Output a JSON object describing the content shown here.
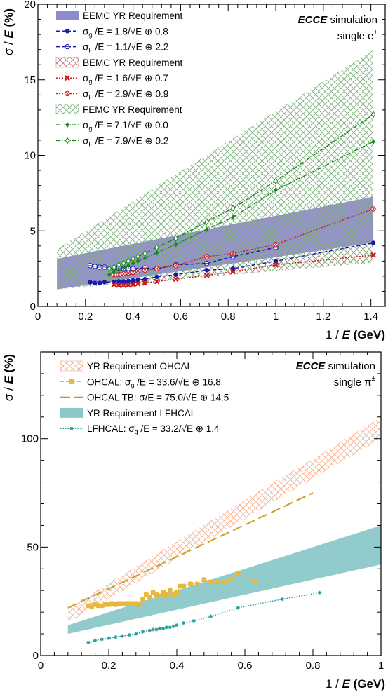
{
  "chart_data": [
    {
      "type": "line",
      "annotation": {
        "bold": "ECCE",
        "rest": " simulation",
        "line2": "single e",
        "line2_sup": "±"
      },
      "xlabel": {
        "prefix": "1 / ",
        "var": "E",
        "unit": " (GeV)"
      },
      "ylabel": {
        "prefix": "σ / ",
        "var": "E",
        "unit": " (%)"
      },
      "xlim": [
        0,
        1.46
      ],
      "ylim": [
        0,
        20
      ],
      "xticks": [
        0,
        0.2,
        0.4,
        0.6,
        0.8,
        1,
        1.2,
        1.4
      ],
      "xtick_labels": [
        "0",
        "0.2",
        "0.4",
        "0.6",
        "0.8",
        "1",
        "1.2",
        "1.4"
      ],
      "yticks": [
        0,
        5,
        10,
        15,
        20
      ],
      "ytick_labels": [
        "0",
        "5",
        "10",
        "15",
        "20"
      ],
      "legend_position": "top-left",
      "colors": {
        "eemc": "#1a1aa8",
        "eemc_band": "#8c8ccc",
        "bemc": "#cc1a1a",
        "bemc_band": "#c48080",
        "femc": "#1a8a1a",
        "femc_band": "#80b080"
      },
      "bands": [
        {
          "name": "EEMC YR Requirement",
          "color": "#8c8ccc",
          "style": "solid",
          "x": [
            0.08,
            1.41
          ],
          "lower": [
            1.13,
            4.22
          ],
          "upper": [
            3.15,
            7.26
          ]
        },
        {
          "name": "BEMC YR Requirement",
          "color": "#c48080",
          "style": "hatch",
          "x": [
            0.08,
            1.41
          ],
          "lower": [
            1.13,
            2.89
          ],
          "upper": [
            3.15,
            7.26
          ]
        },
        {
          "name": "FEMC YR Requirement",
          "color": "#80b080",
          "style": "hatch",
          "x": [
            0.08,
            1.41
          ],
          "lower": [
            1.13,
            2.89
          ],
          "upper": [
            3.78,
            16.98
          ]
        }
      ],
      "series": [
        {
          "name": "EEMC σg fit",
          "label_sym": "σ",
          "label_sub": "g",
          "label_eq": " /E = 1.8/√E ⊕ 0.8",
          "color": "#1a1aa8",
          "marker": "circle-filled",
          "dash": "5,3",
          "x": [
            0.22,
            0.24,
            0.26,
            0.28,
            0.32,
            0.34,
            0.36,
            0.38,
            0.4,
            0.42,
            0.45,
            0.5,
            0.58,
            0.71,
            0.82,
            1.0,
            1.41
          ],
          "y": [
            1.6,
            1.55,
            1.55,
            1.6,
            1.62,
            1.65,
            1.65,
            1.68,
            1.72,
            1.75,
            1.8,
            1.95,
            2.1,
            2.4,
            2.5,
            3.0,
            4.2
          ]
        },
        {
          "name": "EEMC σF fit",
          "label_sym": "σ",
          "label_sub": "F",
          "label_eq": " /E = 1.1/√E ⊕ 2.2",
          "color": "#1a1aa8",
          "marker": "circle-open",
          "dash": "5,3",
          "x": [
            0.22,
            0.24,
            0.26,
            0.28,
            0.32,
            0.34,
            0.36,
            0.38,
            0.4,
            0.45,
            0.5,
            0.58,
            0.71,
            0.82,
            1.0
          ],
          "y": [
            2.7,
            2.65,
            2.6,
            2.6,
            2.55,
            2.55,
            2.5,
            2.5,
            2.5,
            2.55,
            2.5,
            2.75,
            2.85,
            3.3,
            3.9
          ]
        },
        {
          "name": "BEMC σg fit",
          "label_sym": "σ",
          "label_sub": "g",
          "label_eq": " /E = 1.6/√E ⊕ 0.7",
          "color": "#cc1a1a",
          "marker": "x",
          "dash": "2,2",
          "x": [
            0.32,
            0.34,
            0.36,
            0.38,
            0.4,
            0.42,
            0.45,
            0.5,
            0.58,
            0.71,
            0.82,
            1.0,
            1.41
          ],
          "y": [
            1.45,
            1.4,
            1.4,
            1.42,
            1.45,
            1.5,
            1.55,
            1.65,
            1.8,
            2.05,
            2.3,
            2.75,
            3.4
          ]
        },
        {
          "name": "BEMC σF fit",
          "label_sym": "σ",
          "label_sub": "F",
          "label_eq": " /E = 2.9/√E ⊕ 0.9",
          "color": "#cc1a1a",
          "marker": "crossed-circle",
          "dash": "2,2",
          "x": [
            0.32,
            0.34,
            0.36,
            0.38,
            0.4,
            0.42,
            0.45,
            0.5,
            0.58,
            0.71,
            0.82,
            1.0,
            1.41
          ],
          "y": [
            2.1,
            2.1,
            2.15,
            2.2,
            2.25,
            2.35,
            2.4,
            2.5,
            2.7,
            3.3,
            3.5,
            4.1,
            6.45
          ]
        },
        {
          "name": "FEMC σg fit",
          "label_sym": "σ",
          "label_sub": "g",
          "label_eq": " /E = 7.1/√E ⊕ 0.0",
          "color": "#1a8a1a",
          "marker": "diamond-filled",
          "dash": "6,2,1.5,2",
          "x": [
            0.3,
            0.32,
            0.34,
            0.36,
            0.38,
            0.4,
            0.42,
            0.45,
            0.5,
            0.58,
            0.71,
            0.82,
            1.0,
            1.41
          ],
          "y": [
            2.1,
            2.3,
            2.4,
            2.55,
            2.7,
            2.85,
            3.0,
            3.2,
            3.55,
            4.1,
            5.1,
            5.9,
            7.7,
            10.9
          ]
        },
        {
          "name": "FEMC σF fit",
          "label_sym": "σ",
          "label_sub": "F",
          "label_eq": " /E = 7.9/√E ⊕ 0.2",
          "color": "#1a8a1a",
          "marker": "diamond-open",
          "dash": "6,2,1.5,2",
          "x": [
            0.3,
            0.32,
            0.34,
            0.36,
            0.38,
            0.4,
            0.42,
            0.45,
            0.5,
            0.58,
            0.71,
            0.82,
            1.0,
            1.41
          ],
          "y": [
            2.5,
            2.6,
            2.75,
            2.85,
            3.0,
            3.15,
            3.3,
            3.5,
            3.9,
            4.5,
            5.6,
            6.5,
            8.3,
            12.7
          ]
        }
      ],
      "legend": [
        {
          "kind": "band",
          "style": "solid",
          "color": "#8c8ccc",
          "text": "EEMC YR Requirement"
        },
        {
          "kind": "series",
          "ref": 0
        },
        {
          "kind": "series",
          "ref": 1
        },
        {
          "kind": "band",
          "style": "hatch",
          "color": "#c48080",
          "text": "BEMC YR Requirement"
        },
        {
          "kind": "series",
          "ref": 2
        },
        {
          "kind": "series",
          "ref": 3
        },
        {
          "kind": "band",
          "style": "hatch",
          "color": "#80b080",
          "text": "FEMC YR Requirement"
        },
        {
          "kind": "series",
          "ref": 4
        },
        {
          "kind": "series",
          "ref": 5
        }
      ]
    },
    {
      "type": "line",
      "annotation": {
        "bold": "ECCE",
        "rest": " simulation",
        "line2": "single π",
        "line2_sup": "±"
      },
      "xlabel": {
        "prefix": "1 / ",
        "var": "E",
        "unit": " (GeV)"
      },
      "ylabel": {
        "prefix": "σ / ",
        "var": "E",
        "unit": " (%)"
      },
      "xlim": [
        0,
        1
      ],
      "ylim": [
        0,
        140
      ],
      "xticks": [
        0,
        0.2,
        0.4,
        0.6,
        0.8,
        1
      ],
      "xtick_labels": [
        "0",
        "0.2",
        "0.4",
        "0.6",
        "0.8",
        "1"
      ],
      "yticks": [
        0,
        50,
        100
      ],
      "ytick_labels": [
        "0",
        "50",
        "100"
      ],
      "legend_position": "top-left",
      "colors": {
        "ohcal": "#e8b838",
        "ohcal_tb": "#c8a020",
        "ohcal_band": "#f4b090",
        "lfhcal": "#2a9a9a",
        "lfhcal_band": "#8cc8c8"
      },
      "bands": [
        {
          "name": "YR Requirement OHCAL",
          "color": "#f4b090",
          "style": "hatch",
          "x": [
            0.08,
            1.0
          ],
          "lower": [
            15,
            100
          ],
          "upper": [
            22,
            110
          ]
        },
        {
          "name": "YR Requirement LFHCAL",
          "color": "#8cc8c8",
          "style": "solid",
          "x": [
            0.08,
            1.0
          ],
          "lower": [
            10,
            42
          ],
          "upper": [
            14,
            60
          ]
        }
      ],
      "series": [
        {
          "name": "OHCAL",
          "label_pre": "OHCAL: ",
          "label_sym": "σ",
          "label_sub": "g",
          "label_eq": " /E = 33.6/√E ⊕ 16.8",
          "color": "#e8b838",
          "marker": "square",
          "dash": "5,3",
          "x": [
            0.14,
            0.15,
            0.16,
            0.17,
            0.18,
            0.19,
            0.2,
            0.21,
            0.22,
            0.23,
            0.24,
            0.25,
            0.26,
            0.27,
            0.28,
            0.29,
            0.3,
            0.31,
            0.32,
            0.33,
            0.34,
            0.35,
            0.36,
            0.37,
            0.38,
            0.39,
            0.4,
            0.41,
            0.42,
            0.44,
            0.46,
            0.48,
            0.5,
            0.52,
            0.54,
            0.56,
            0.58,
            0.63
          ],
          "y": [
            23,
            22.5,
            23.5,
            23,
            23,
            23.5,
            23.5,
            24,
            23.5,
            24,
            24,
            24,
            24,
            24,
            24,
            23.5,
            26,
            28,
            27,
            29,
            28,
            27.5,
            29,
            28,
            30,
            28,
            29,
            32,
            32,
            33,
            33,
            35,
            34,
            34,
            34,
            35,
            38,
            34
          ]
        },
        {
          "name": "OHCAL TB",
          "label_pre": "OHCAL TB: ",
          "label_sym": "σ",
          "label_sub": "",
          "label_eq": "/E = 75.0/√E ⊕ 14.5",
          "color": "#c8a020",
          "marker": "none",
          "dash": "14,6",
          "x": [
            0.08,
            0.8
          ],
          "y": [
            22,
            75
          ]
        },
        {
          "name": "LFHCAL",
          "label_pre": "LFHCAL: ",
          "label_sym": "σ",
          "label_sub": "g",
          "label_eq": " /E = 33.2/√E ⊕ 1.4",
          "color": "#2a9a9a",
          "marker": "star",
          "dash": "1.5,2",
          "x": [
            0.14,
            0.16,
            0.18,
            0.2,
            0.22,
            0.24,
            0.26,
            0.28,
            0.3,
            0.32,
            0.33,
            0.34,
            0.35,
            0.36,
            0.37,
            0.38,
            0.39,
            0.4,
            0.42,
            0.45,
            0.5,
            0.58,
            0.71,
            0.82
          ],
          "y": [
            6,
            7,
            7.5,
            8,
            8.5,
            9,
            9.5,
            10,
            11,
            11.5,
            12,
            12,
            12.5,
            12.5,
            13,
            13,
            13.5,
            14,
            15,
            16,
            18,
            22,
            26,
            29
          ]
        }
      ],
      "legend": [
        {
          "kind": "band",
          "style": "hatch",
          "color": "#f4b090",
          "text": "YR Requirement OHCAL"
        },
        {
          "kind": "series",
          "ref": 0
        },
        {
          "kind": "series",
          "ref": 1
        },
        {
          "kind": "band",
          "style": "solid",
          "color": "#8cc8c8",
          "text": "YR Requirement LFHCAL"
        },
        {
          "kind": "series",
          "ref": 2
        }
      ]
    }
  ]
}
